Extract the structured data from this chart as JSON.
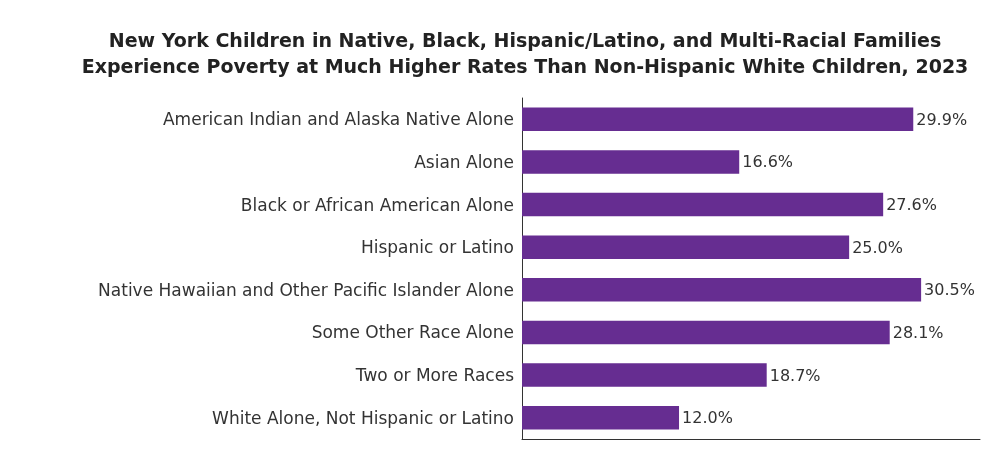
{
  "chart_data": {
    "type": "bar",
    "orientation": "horizontal",
    "title": "New York Children in Native, Black, Hispanic/Latino, and Multi-Racial Families\nExperience Poverty at Much Higher Rates Than Non-Hispanic White Children, 2023",
    "categories": [
      "American Indian and Alaska Native Alone",
      "Asian Alone",
      "Black or African American Alone",
      "Hispanic or Latino",
      "Native Hawaiian and Other Pacific Islander Alone",
      "Some Other Race Alone",
      "Two or More Races",
      "White Alone, Not Hispanic or Latino"
    ],
    "values": [
      29.9,
      16.6,
      27.6,
      25.0,
      30.5,
      28.1,
      18.7,
      12.0
    ],
    "value_labels": [
      "29.9%",
      "16.6%",
      "27.6%",
      "25.0%",
      "30.5%",
      "28.1%",
      "18.7%",
      "12.0%"
    ],
    "color": "#662d91",
    "grid": false
  }
}
